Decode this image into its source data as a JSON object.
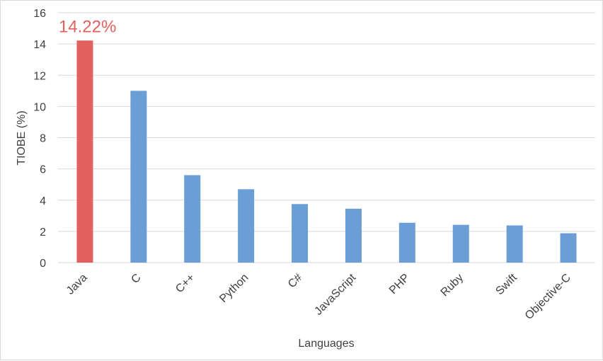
{
  "chart_data": {
    "type": "bar",
    "title": "",
    "xlabel": "Languages",
    "ylabel": "TIOBE (%)",
    "ylim": [
      0,
      16
    ],
    "yticks": [
      0,
      2,
      4,
      6,
      8,
      10,
      12,
      14,
      16
    ],
    "grid": true,
    "categories": [
      "Java",
      "C",
      "C++",
      "Python",
      "C#",
      "JavaScript",
      "PHP",
      "Ruby",
      "Swift",
      "Objective-C"
    ],
    "values": [
      14.22,
      11.0,
      5.6,
      4.7,
      3.75,
      3.45,
      2.55,
      2.42,
      2.38,
      1.88
    ],
    "highlight_index": 0,
    "highlight_label": "14.22%",
    "colors": {
      "bar": "#6a9ed4",
      "highlight": "#e2605e",
      "grid": "#d9d9d9",
      "text": "#404040"
    }
  }
}
